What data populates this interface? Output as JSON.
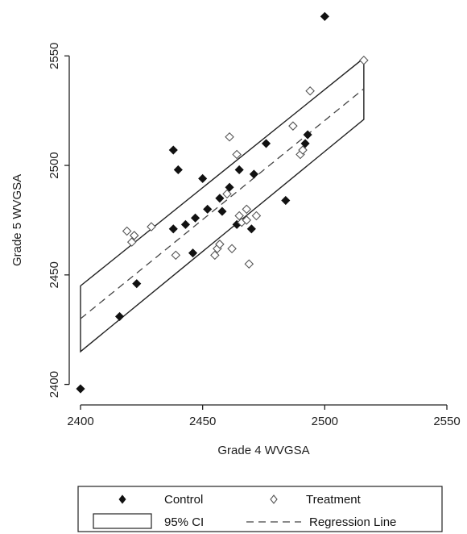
{
  "chart_data": {
    "type": "scatter",
    "xlabel": "Grade 4 WVGSA",
    "ylabel": "Grade 5 WVGSA",
    "xlim": [
      2400,
      2550
    ],
    "ylim": [
      2398,
      2570
    ],
    "xticks": [
      "2400",
      "2450",
      "2500",
      "2550"
    ],
    "yticks": [
      "2400",
      "2450",
      "2500",
      "2550"
    ],
    "series": [
      {
        "name": "Control",
        "marker": "filled-diamond",
        "color": "#111111",
        "points": [
          [
            2400,
            2398
          ],
          [
            2416,
            2431
          ],
          [
            2423,
            2446
          ],
          [
            2438,
            2507
          ],
          [
            2440,
            2498
          ],
          [
            2438,
            2471
          ],
          [
            2443,
            2473
          ],
          [
            2446,
            2460
          ],
          [
            2447,
            2476
          ],
          [
            2450,
            2494
          ],
          [
            2452,
            2480
          ],
          [
            2457,
            2485
          ],
          [
            2458,
            2479
          ],
          [
            2461,
            2490
          ],
          [
            2464,
            2473
          ],
          [
            2465,
            2498
          ],
          [
            2470,
            2471
          ],
          [
            2471,
            2496
          ],
          [
            2476,
            2510
          ],
          [
            2484,
            2484
          ],
          [
            2492,
            2510
          ],
          [
            2493,
            2514
          ],
          [
            2500,
            2568
          ]
        ]
      },
      {
        "name": "Treatment",
        "marker": "hollow-diamond",
        "color": "#555555",
        "points": [
          [
            2419,
            2470
          ],
          [
            2421,
            2465
          ],
          [
            2422,
            2468
          ],
          [
            2429,
            2472
          ],
          [
            2439,
            2459
          ],
          [
            2455,
            2459
          ],
          [
            2456,
            2462
          ],
          [
            2457,
            2464
          ],
          [
            2460,
            2487
          ],
          [
            2461,
            2513
          ],
          [
            2462,
            2462
          ],
          [
            2464,
            2505
          ],
          [
            2465,
            2477
          ],
          [
            2466,
            2474
          ],
          [
            2468,
            2480
          ],
          [
            2468,
            2475
          ],
          [
            2469,
            2455
          ],
          [
            2472,
            2477
          ],
          [
            2487,
            2518
          ],
          [
            2490,
            2505
          ],
          [
            2491,
            2507
          ],
          [
            2494,
            2534
          ],
          [
            2516,
            2548
          ]
        ]
      }
    ],
    "regression_line": {
      "x": [
        2400,
        2516
      ],
      "y": [
        2430,
        2535
      ]
    },
    "ci_95": {
      "x": [
        2400,
        2516
      ],
      "upper": [
        2445,
        2549
      ],
      "lower": [
        2415,
        2521
      ]
    },
    "legend": {
      "position": "bottom-center",
      "entries": [
        {
          "label": "Control"
        },
        {
          "label": "Treatment"
        },
        {
          "label": "95% CI"
        },
        {
          "label": "Regression Line"
        }
      ]
    },
    "grid": false
  }
}
